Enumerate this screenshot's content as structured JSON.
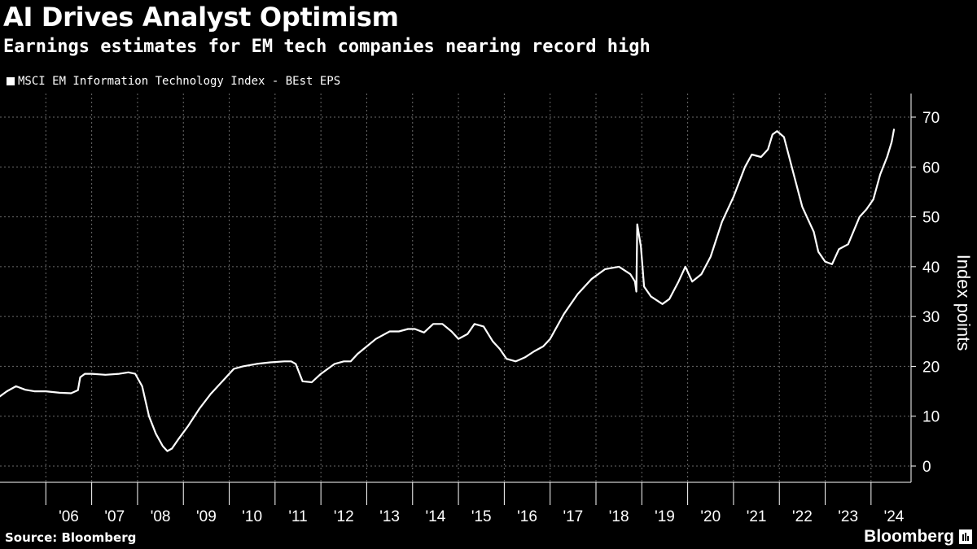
{
  "header": {
    "title": "AI Drives Analyst Optimism",
    "subtitle": "Earnings estimates for EM tech companies nearing record high"
  },
  "footer": {
    "source": "Source: Bloomberg",
    "brand": "Bloomberg"
  },
  "colors": {
    "background": "#000000",
    "line": "#ffffff",
    "grid": "#6a6a6a"
  },
  "chart_data": {
    "type": "line",
    "title": "AI Drives Analyst Optimism",
    "subtitle": "Earnings estimates for EM tech companies nearing record high",
    "ylabel": "Index points",
    "xlabel": "",
    "ylim": [
      0,
      70
    ],
    "yticks": [
      0,
      10,
      20,
      30,
      40,
      50,
      60,
      70
    ],
    "x_tick_labels": [
      "'06",
      "'07",
      "'08",
      "'09",
      "'10",
      "'11",
      "'12",
      "'13",
      "'14",
      "'15",
      "'16",
      "'17",
      "'18",
      "'19",
      "'20",
      "'21",
      "'22",
      "'23",
      "'24"
    ],
    "legend": "top-left",
    "grid": true,
    "series": [
      {
        "name": "MSCI EM Information Technology Index - BEst EPS",
        "color": "#ffffff",
        "x": [
          2005.0,
          2005.15,
          2005.35,
          2005.55,
          2005.75,
          2006.0,
          2006.3,
          2006.55,
          2006.7,
          2006.75,
          2006.85,
          2007.0,
          2007.3,
          2007.6,
          2007.8,
          2007.95,
          2008.1,
          2008.25,
          2008.4,
          2008.55,
          2008.65,
          2008.75,
          2008.9,
          2009.1,
          2009.35,
          2009.6,
          2009.8,
          2009.95,
          2010.1,
          2010.3,
          2010.6,
          2010.9,
          2011.2,
          2011.35,
          2011.45,
          2011.6,
          2011.8,
          2012.0,
          2012.3,
          2012.5,
          2012.65,
          2012.8,
          2013.0,
          2013.2,
          2013.5,
          2013.7,
          2013.9,
          2014.05,
          2014.25,
          2014.45,
          2014.65,
          2014.85,
          2015.0,
          2015.2,
          2015.35,
          2015.55,
          2015.75,
          2015.9,
          2016.05,
          2016.25,
          2016.45,
          2016.65,
          2016.85,
          2017.0,
          2017.3,
          2017.6,
          2017.9,
          2018.2,
          2018.5,
          2018.75,
          2018.85,
          2018.88,
          2018.9,
          2018.98,
          2019.05,
          2019.2,
          2019.45,
          2019.6,
          2019.8,
          2019.95,
          2020.1,
          2020.3,
          2020.5,
          2020.75,
          2021.0,
          2021.25,
          2021.4,
          2021.6,
          2021.75,
          2021.85,
          2021.95,
          2022.1,
          2022.3,
          2022.5,
          2022.65,
          2022.75,
          2022.85,
          2023.0,
          2023.15,
          2023.3,
          2023.5,
          2023.75,
          2023.9,
          2024.05,
          2024.2,
          2024.35,
          2024.45,
          2024.5
        ],
        "values": [
          14.0,
          15.0,
          16.0,
          15.3,
          15.0,
          15.0,
          14.7,
          14.6,
          15.2,
          17.8,
          18.5,
          18.5,
          18.3,
          18.5,
          18.8,
          18.5,
          16.0,
          10.0,
          6.5,
          4.0,
          3.0,
          3.5,
          5.5,
          8.0,
          11.5,
          14.5,
          16.5,
          18.0,
          19.5,
          20.0,
          20.5,
          20.8,
          21.0,
          21.0,
          20.5,
          17.0,
          16.8,
          18.5,
          20.5,
          21.0,
          21.0,
          22.5,
          24.0,
          25.5,
          27.0,
          27.0,
          27.5,
          27.5,
          26.8,
          28.5,
          28.5,
          27.0,
          25.5,
          26.5,
          28.5,
          28.0,
          25.0,
          23.5,
          21.5,
          21.0,
          21.8,
          23.0,
          24.0,
          25.5,
          30.5,
          34.5,
          37.5,
          39.5,
          40.0,
          38.5,
          37.0,
          35.0,
          48.5,
          44.0,
          36.0,
          34.0,
          32.5,
          33.5,
          37.0,
          40.0,
          37.0,
          38.5,
          42.0,
          49.0,
          54.0,
          60.0,
          62.5,
          62.0,
          63.5,
          66.5,
          67.2,
          66.0,
          59.0,
          52.0,
          49.0,
          47.0,
          43.0,
          41.0,
          40.5,
          43.5,
          44.5,
          50.0,
          51.5,
          53.5,
          58.5,
          62.0,
          65.0,
          67.5
        ]
      }
    ]
  }
}
